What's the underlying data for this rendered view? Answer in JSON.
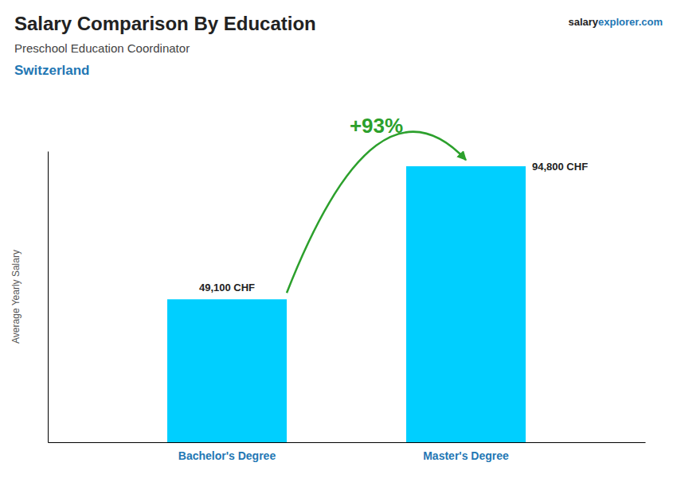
{
  "chart_data": {
    "type": "bar",
    "title": "Salary Comparison By Education",
    "subtitle": "Preschool Education Coordinator",
    "ylabel": "Average Yearly Salary",
    "annotations": [
      "Switzerland",
      "salary",
      "explorer.com",
      "+93%"
    ],
    "categories": [
      "Bachelor's Degree",
      "Master's Degree"
    ],
    "values": [
      49100,
      94800
    ],
    "value_labels": [
      "49,100 CHF",
      "94,800 CHF"
    ],
    "color": "#00CFFF",
    "ylim": [
      0,
      100000
    ],
    "data_labels": true,
    "tick_labels": "x"
  }
}
